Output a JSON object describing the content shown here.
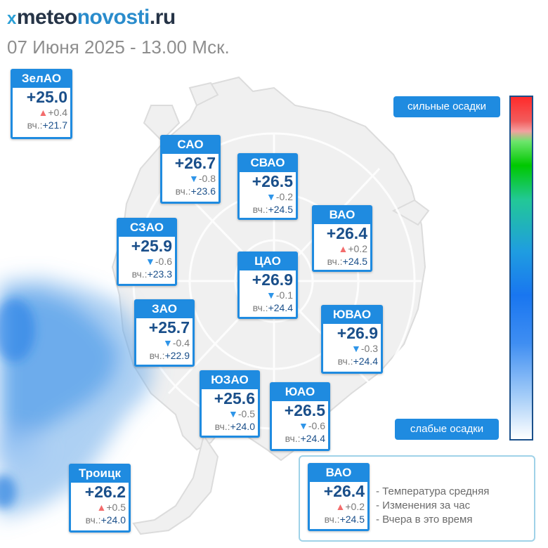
{
  "header": {
    "logo": {
      "mark": "x",
      "part1": "meteo",
      "part2": "novosti",
      "part3": ".ru"
    },
    "date": "07 Июня 2025 - 13.00 Мск."
  },
  "colors": {
    "card_blue": "#1f8be0",
    "value_blue": "#1a4f8a",
    "up_red": "#f36c6c",
    "down_blue": "#2f95e8"
  },
  "scale": {
    "top_label": "сильные осадки",
    "bottom_label": "слабые осадки"
  },
  "districts": [
    {
      "id": "zelao",
      "name": "ЗелАО",
      "temp": "+25.0",
      "dir": "up",
      "delta": "+0.4",
      "yesterday_label": "вч.:",
      "yesterday": "+21.7"
    },
    {
      "id": "sao",
      "name": "САО",
      "temp": "+26.7",
      "dir": "down",
      "delta": "-0.8",
      "yesterday_label": "вч.:",
      "yesterday": "+23.6"
    },
    {
      "id": "svao",
      "name": "СВАО",
      "temp": "+26.5",
      "dir": "down",
      "delta": "-0.2",
      "yesterday_label": "вч.:",
      "yesterday": "+24.5"
    },
    {
      "id": "vao",
      "name": "ВАО",
      "temp": "+26.4",
      "dir": "up",
      "delta": "+0.2",
      "yesterday_label": "вч.:",
      "yesterday": "+24.5"
    },
    {
      "id": "szao",
      "name": "СЗАО",
      "temp": "+25.9",
      "dir": "down",
      "delta": "-0.6",
      "yesterday_label": "вч.:",
      "yesterday": "+23.3"
    },
    {
      "id": "cao",
      "name": "ЦАО",
      "temp": "+26.9",
      "dir": "down",
      "delta": "-0.1",
      "yesterday_label": "вч.:",
      "yesterday": "+24.4"
    },
    {
      "id": "zao",
      "name": "ЗАО",
      "temp": "+25.7",
      "dir": "down",
      "delta": "-0.4",
      "yesterday_label": "вч.:",
      "yesterday": "+22.9"
    },
    {
      "id": "yuvao",
      "name": "ЮВАО",
      "temp": "+26.9",
      "dir": "down",
      "delta": "-0.3",
      "yesterday_label": "вч.:",
      "yesterday": "+24.4"
    },
    {
      "id": "yuzao",
      "name": "ЮЗАО",
      "temp": "+25.6",
      "dir": "down",
      "delta": "-0.5",
      "yesterday_label": "вч.:",
      "yesterday": "+24.0"
    },
    {
      "id": "yuao",
      "name": "ЮАО",
      "temp": "+26.5",
      "dir": "down",
      "delta": "-0.6",
      "yesterday_label": "вч.:",
      "yesterday": "+24.4"
    },
    {
      "id": "troick",
      "name": "Троицк",
      "temp": "+26.2",
      "dir": "up",
      "delta": "+0.5",
      "yesterday_label": "вч.:",
      "yesterday": "+24.0"
    }
  ],
  "legend": {
    "sample": {
      "name": "ВАО",
      "temp": "+26.4",
      "dir": "up",
      "delta": "+0.2",
      "yesterday_label": "вч.:",
      "yesterday": "+24.5"
    },
    "lines": [
      "- Температура средняя",
      "- Изменения за час",
      "- Вчера в это время"
    ]
  }
}
